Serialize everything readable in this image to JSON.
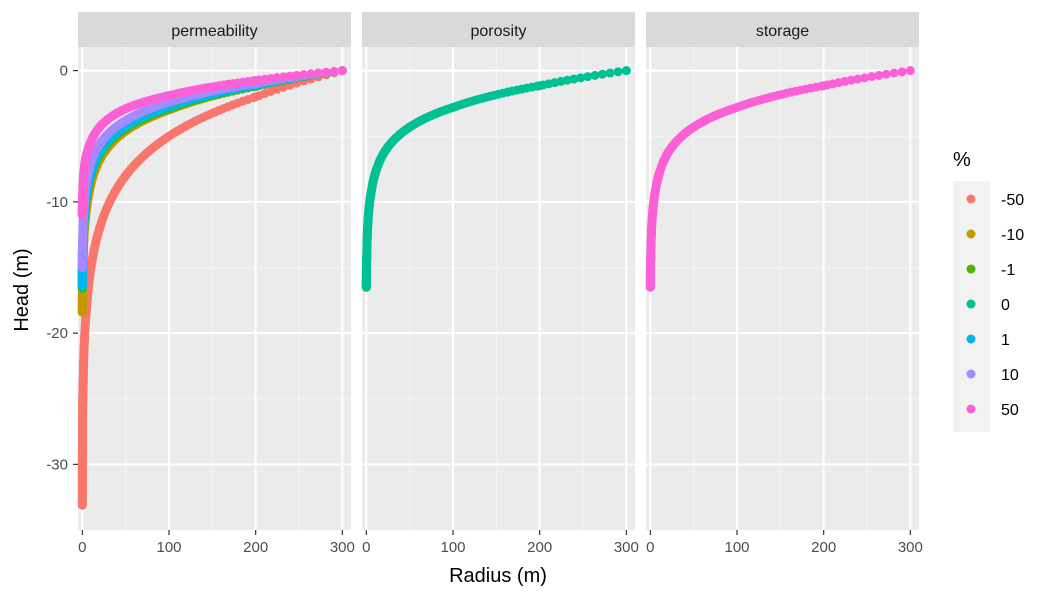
{
  "chart_data": {
    "type": "scatter",
    "facet_by": "parameter",
    "facets": [
      "permeability",
      "porosity",
      "storage"
    ],
    "xlabel": "Radius (m)",
    "ylabel": "Head (m)",
    "xlim": [
      -5,
      310
    ],
    "ylim": [
      -35,
      1.8
    ],
    "x_ticks": [
      0,
      100,
      200,
      300
    ],
    "y_ticks": [
      0,
      -10,
      -20,
      -30
    ],
    "grid": true,
    "legend": {
      "title": "%",
      "position": "right",
      "entries": [
        {
          "label": "-50",
          "color": "#F8766D"
        },
        {
          "label": "-10",
          "color": "#C49A00"
        },
        {
          "label": "-1",
          "color": "#53B400"
        },
        {
          "label": "0",
          "color": "#00C094"
        },
        {
          "label": "1",
          "color": "#00B6EB"
        },
        {
          "label": "10",
          "color": "#A58AFF"
        },
        {
          "label": "50",
          "color": "#FB61D7"
        }
      ]
    },
    "series": [
      {
        "facet": "permeability",
        "name": "-50",
        "color": "#F8766D",
        "x": [
          0.01,
          0.1,
          0.5,
          1,
          2,
          5,
          10,
          20,
          50,
          100,
          200,
          300
        ],
        "y": [
          -33.1,
          -28.7,
          -25.0,
          -23.7,
          -21.2,
          -18.0,
          -15.0,
          -12.0,
          -8.0,
          -5.0,
          -2.0,
          0
        ]
      },
      {
        "facet": "permeability",
        "name": "-10",
        "color": "#C49A00",
        "x": [
          0.01,
          0.5,
          2,
          5,
          10,
          20,
          50,
          100,
          200,
          300
        ],
        "y": [
          -18.4,
          -16.0,
          -12.5,
          -10.5,
          -8.6,
          -6.8,
          -4.6,
          -3.0,
          -1.2,
          0
        ]
      },
      {
        "facet": "permeability",
        "name": "-1",
        "color": "#53B400",
        "x": [
          0.01,
          0.5,
          2,
          5,
          10,
          20,
          50,
          100,
          200,
          300
        ],
        "y": [
          -16.6,
          -14.3,
          -11.5,
          -9.6,
          -8.0,
          -6.4,
          -4.4,
          -2.9,
          -1.2,
          0
        ]
      },
      {
        "facet": "permeability",
        "name": "0",
        "color": "#00C094",
        "x": [
          0.01,
          0.5,
          2,
          5,
          10,
          20,
          50,
          100,
          200,
          300
        ],
        "y": [
          -16.5,
          -14.2,
          -11.4,
          -9.5,
          -7.9,
          -6.3,
          -4.3,
          -2.8,
          -1.15,
          0
        ]
      },
      {
        "facet": "permeability",
        "name": "1",
        "color": "#00B6EB",
        "x": [
          0.01,
          0.5,
          2,
          5,
          10,
          20,
          50,
          100,
          200,
          300
        ],
        "y": [
          -16.3,
          -14.0,
          -11.2,
          -9.3,
          -7.7,
          -6.1,
          -4.2,
          -2.7,
          -1.1,
          0
        ]
      },
      {
        "facet": "permeability",
        "name": "10",
        "color": "#A58AFF",
        "x": [
          0.01,
          0.5,
          2,
          5,
          10,
          20,
          50,
          100,
          200,
          300
        ],
        "y": [
          -15.0,
          -12.9,
          -10.3,
          -8.5,
          -7.0,
          -5.6,
          -3.8,
          -2.4,
          -1.0,
          0
        ]
      },
      {
        "facet": "permeability",
        "name": "50",
        "color": "#FB61D7",
        "x": [
          0.01,
          0.5,
          2,
          5,
          10,
          20,
          50,
          100,
          200,
          300
        ],
        "y": [
          -11.0,
          -9.5,
          -7.6,
          -6.4,
          -5.4,
          -4.3,
          -2.9,
          -1.9,
          -0.75,
          0
        ]
      },
      {
        "facet": "porosity",
        "name": "0",
        "color": "#00C094",
        "x": [
          0.01,
          0.5,
          2,
          5,
          10,
          20,
          50,
          100,
          200,
          300
        ],
        "y": [
          -16.5,
          -14.2,
          -11.4,
          -9.5,
          -7.9,
          -6.3,
          -4.3,
          -2.8,
          -1.15,
          0
        ]
      },
      {
        "facet": "storage",
        "name": "50",
        "color": "#FB61D7",
        "x": [
          0.01,
          0.5,
          2,
          5,
          10,
          20,
          50,
          100,
          200,
          300
        ],
        "y": [
          -16.5,
          -14.2,
          -11.4,
          -9.5,
          -7.9,
          -6.3,
          -4.3,
          -2.8,
          -1.15,
          0
        ]
      }
    ]
  }
}
